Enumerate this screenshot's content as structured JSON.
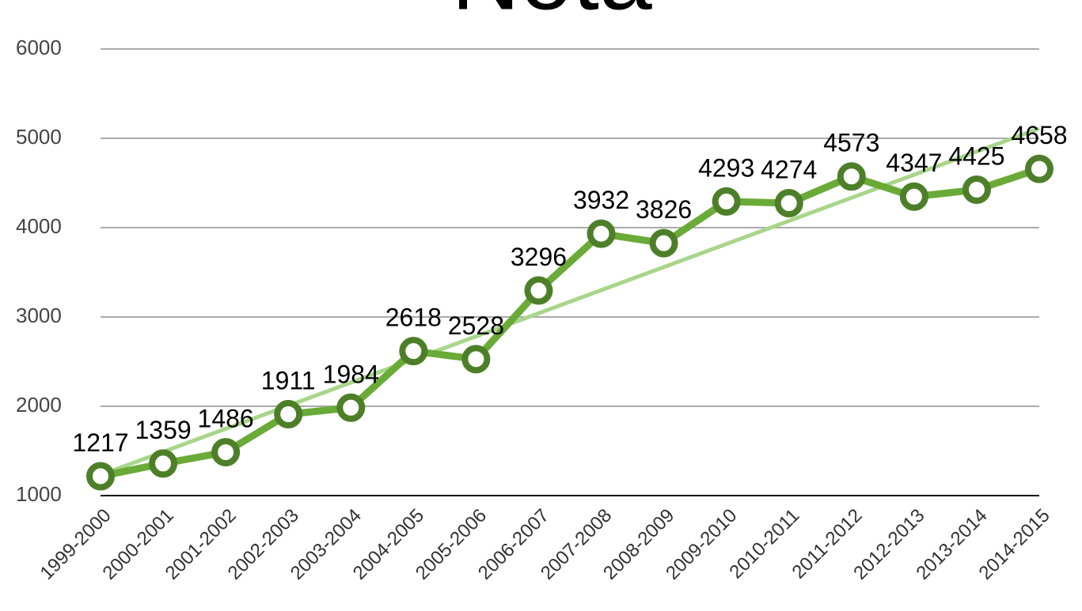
{
  "chart_data": {
    "type": "line",
    "title": "Nota",
    "categories": [
      "1999-2000",
      "2000-2001",
      "2001-2002",
      "2002-2003",
      "2003-2004",
      "2004-2005",
      "2005-2006",
      "2006-2007",
      "2007-2008",
      "2008-2009",
      "2009-2010",
      "2010-2011",
      "2011-2012",
      "2012-2013",
      "2013-2014",
      "2014-2015"
    ],
    "series": [
      {
        "name": "Nota",
        "color": "#6aaa37",
        "values": [
          1217,
          1359,
          1486,
          1911,
          1984,
          2618,
          2528,
          3296,
          3932,
          3826,
          4293,
          4274,
          4573,
          4347,
          4425,
          4658
        ]
      }
    ],
    "ylim": [
      1000,
      6000
    ],
    "yticks": [
      1000,
      2000,
      3000,
      4000,
      5000,
      6000
    ],
    "grid": true,
    "trendline": true
  }
}
